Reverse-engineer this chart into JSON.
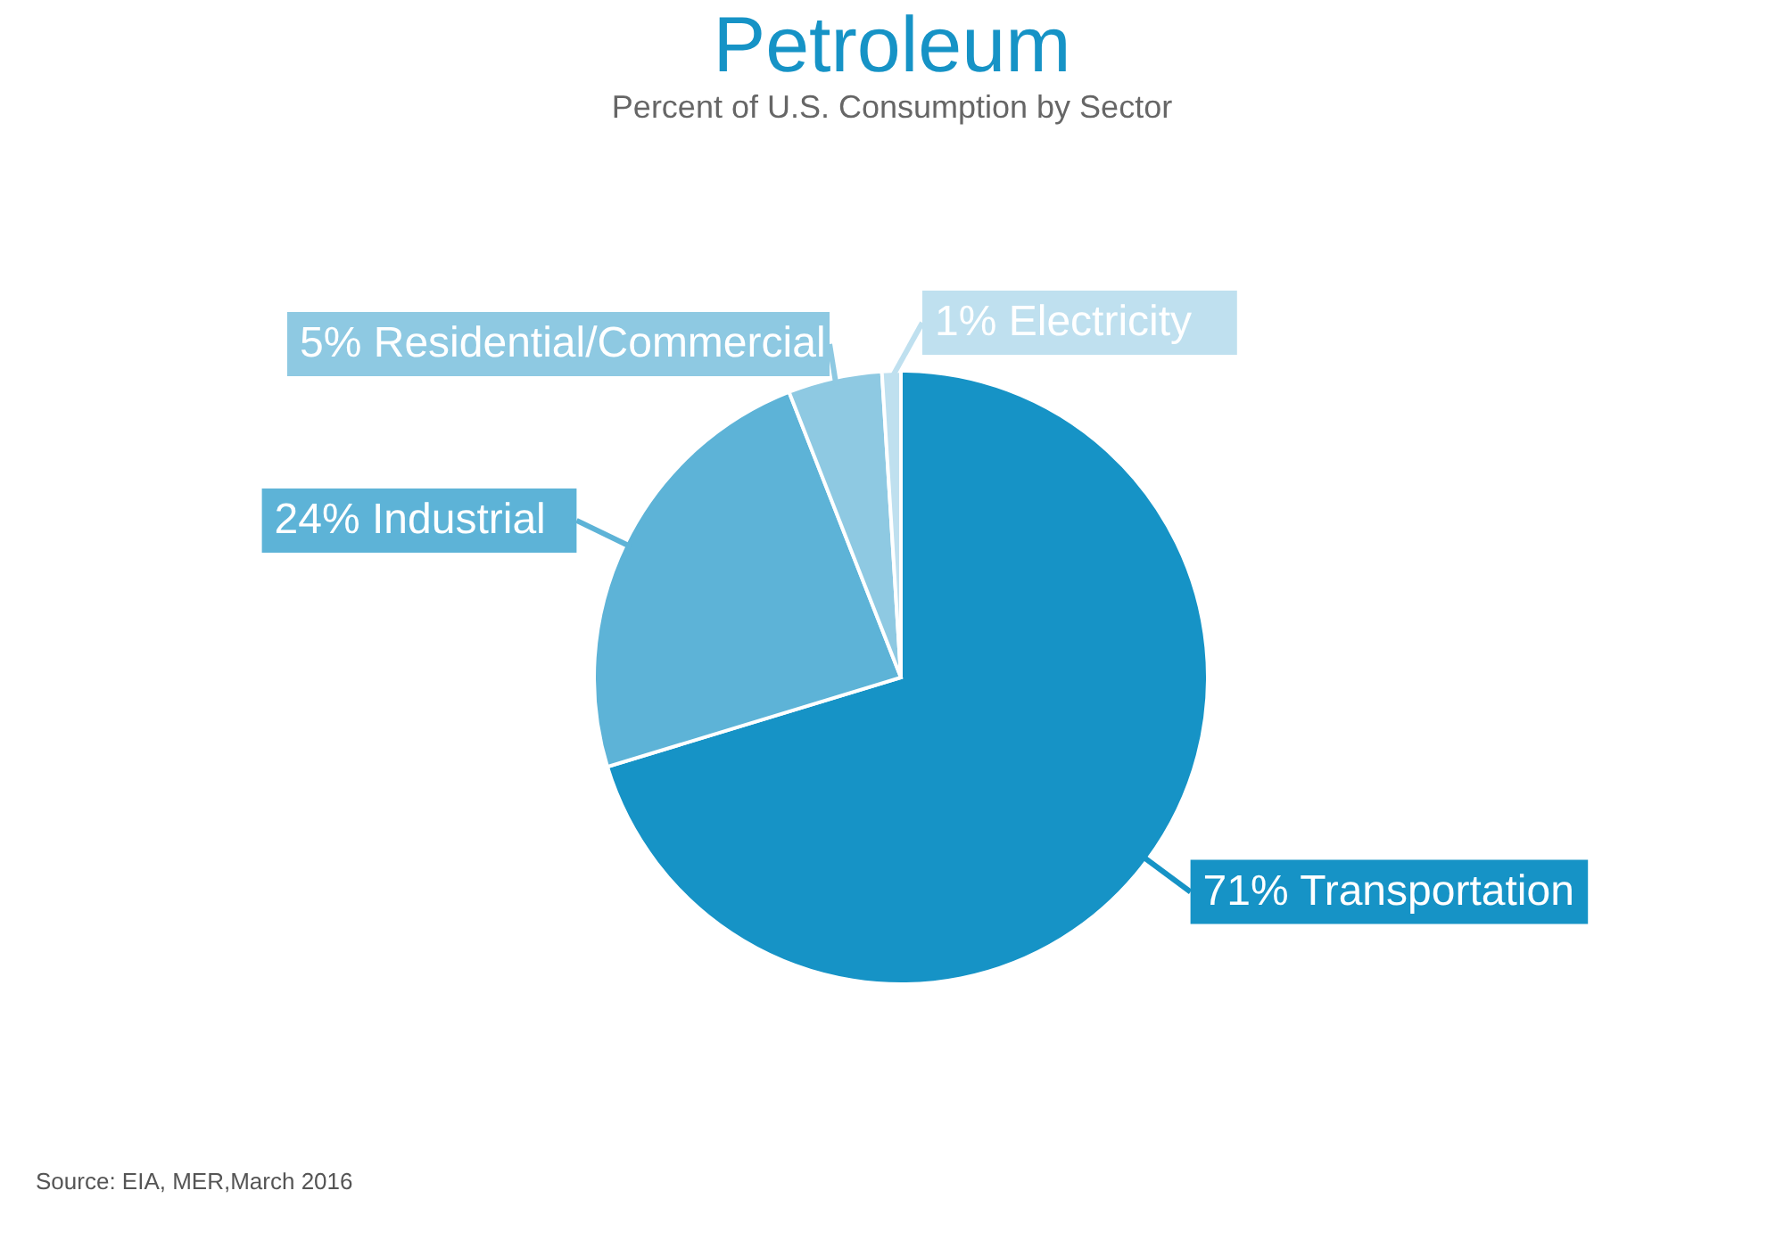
{
  "chart_data": {
    "type": "pie",
    "title": "Petroleum",
    "subtitle": "Percent of U.S. Consumption by Sector",
    "categories": [
      "Transportation",
      "Industrial",
      "Residential/Commercial",
      "Electricity"
    ],
    "values": [
      71,
      24,
      5,
      1
    ],
    "value_labels": [
      "71%",
      "24%",
      "5%",
      "1%"
    ],
    "colors": [
      "#1693c6",
      "#5db3d7",
      "#8ec9e2",
      "#bfe0ef"
    ],
    "legend": false,
    "annotations": [
      "Source: EIA, MER,March 2016"
    ]
  }
}
